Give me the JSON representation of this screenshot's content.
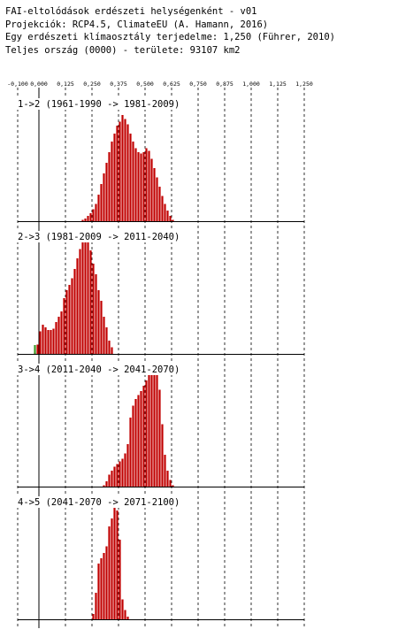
{
  "header": {
    "title": "FAI-eltolódások erdészeti helységenként - v01",
    "projection": "Projekciók: RCP4.5, ClimateEU (A. Hamann, 2016)",
    "class_width": "Egy erdészeti klímaosztály terjedelme: 1,250 (Führer, 2010)",
    "area": "Teljes ország (0000) - területe: 93107 km2"
  },
  "colors": {
    "positive": "#c00000",
    "negative": "#3a9a28",
    "axis": "#000000",
    "grid": "#000000",
    "background": "#ffffff"
  },
  "chart_data": {
    "type": "bar",
    "x_axis": {
      "range": [
        -0.1,
        1.25
      ],
      "ticks": [
        -0.1,
        0.0,
        0.125,
        0.25,
        0.375,
        0.5,
        0.625,
        0.75,
        0.875,
        1.0,
        1.125,
        1.25
      ],
      "tick_labels": [
        "-0,100",
        "0,000",
        "0,125",
        "0,250",
        "0,375",
        "0,500",
        "0,625",
        "0,750",
        "0,875",
        "1,000",
        "1,125",
        "1,250"
      ],
      "grid": "vertical dashed at each tick",
      "bin_width": 0.0125
    },
    "panels": [
      {
        "label": "1->2 (1961-1990 -> 1981-2009)",
        "bins_start": 0.2,
        "values": [
          1,
          2,
          4,
          6,
          9,
          13,
          20,
          28,
          36,
          44,
          52,
          60,
          66,
          72,
          75,
          80,
          77,
          73,
          66,
          60,
          55,
          52,
          51,
          52,
          55,
          53,
          47,
          40,
          33,
          26,
          19,
          13,
          8,
          4,
          1
        ]
      },
      {
        "label": "2->3 (1981-2009 -> 2011-2040)",
        "bins_start": -0.025,
        "values": [
          1,
          7,
          17,
          22,
          20,
          18,
          18,
          19,
          24,
          28,
          32,
          42,
          48,
          52,
          57,
          64,
          72,
          79,
          92,
          89,
          85,
          78,
          68,
          60,
          48,
          40,
          28,
          20,
          10,
          5
        ],
        "negative_counts": 2
      },
      {
        "label": "3->4 (2011-2040 -> 2041-2070)",
        "bins_start": 0.3,
        "values": [
          1,
          4,
          9,
          12,
          15,
          17,
          19,
          21,
          25,
          32,
          52,
          61,
          66,
          69,
          72,
          76,
          80,
          89,
          90,
          91,
          88,
          73,
          47,
          24,
          12,
          5,
          1
        ]
      },
      {
        "label": "4->5 (2041-2070 -> 2071-2100)",
        "bins_start": 0.25,
        "values": [
          4,
          20,
          42,
          46,
          50,
          55,
          70,
          76,
          90,
          82,
          60,
          15,
          7,
          2
        ]
      }
    ]
  }
}
